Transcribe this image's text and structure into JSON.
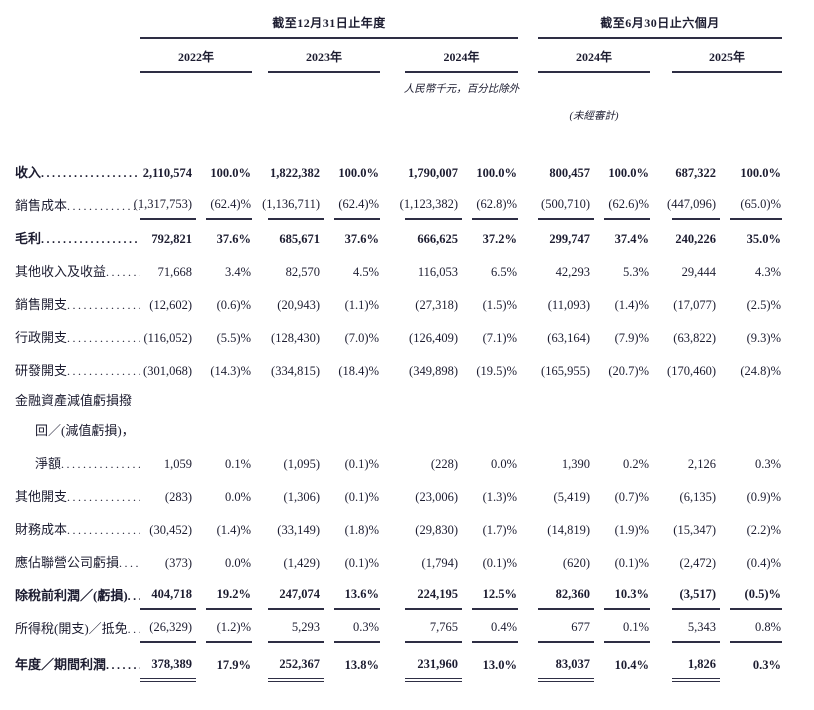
{
  "page": {
    "background": "#ffffff",
    "text_color": "#1c1c30",
    "line_color": "#2e2e44"
  },
  "table": {
    "header": {
      "annual_title": "截至12月31日止年度",
      "interim_title": "截至6月30日止六個月",
      "years": [
        "2022年",
        "2023年",
        "2024年",
        "2024年",
        "2025年"
      ],
      "unit_note": "人民幣千元，百分比除外",
      "unaudited_note": "(未經審計)"
    },
    "rows": [
      {
        "label": "收入",
        "bold": true,
        "dots": true,
        "cells": [
          "2,110,574",
          "100.0%",
          "1,822,382",
          "100.0%",
          "1,790,007",
          "100.0%",
          "800,457",
          "100.0%",
          "687,322",
          "100.0%"
        ]
      },
      {
        "label": "銷售成本",
        "dots": true,
        "underline": "single",
        "cells": [
          "(1,317,753)",
          "(62.4)%",
          "(1,136,711)",
          "(62.4)%",
          "(1,123,382)",
          "(62.8)%",
          "(500,710)",
          "(62.6)%",
          "(447,096)",
          "(65.0)%"
        ]
      },
      {
        "label": "毛利",
        "bold": true,
        "dots": true,
        "cells": [
          "792,821",
          "37.6%",
          "685,671",
          "37.6%",
          "666,625",
          "37.2%",
          "299,747",
          "37.4%",
          "240,226",
          "35.0%"
        ]
      },
      {
        "label": "其他收入及收益",
        "dots": true,
        "cells": [
          "71,668",
          "3.4%",
          "82,570",
          "4.5%",
          "116,053",
          "6.5%",
          "42,293",
          "5.3%",
          "29,444",
          "4.3%"
        ]
      },
      {
        "label": "銷售開支",
        "dots": true,
        "cells": [
          "(12,602)",
          "(0.6)%",
          "(20,943)",
          "(1.1)%",
          "(27,318)",
          "(1.5)%",
          "(11,093)",
          "(1.4)%",
          "(17,077)",
          "(2.5)%"
        ]
      },
      {
        "label": "行政開支",
        "dots": true,
        "cells": [
          "(116,052)",
          "(5.5)%",
          "(128,430)",
          "(7.0)%",
          "(126,409)",
          "(7.1)%",
          "(63,164)",
          "(7.9)%",
          "(63,822)",
          "(9.3)%"
        ]
      },
      {
        "label": "研發開支",
        "dots": true,
        "cells": [
          "(301,068)",
          "(14.3)%",
          "(334,815)",
          "(18.4)%",
          "(349,898)",
          "(19.5)%",
          "(165,955)",
          "(20.7)%",
          "(170,460)",
          "(24.8)%"
        ]
      },
      {
        "label": "金融資產減值虧損撥",
        "label_only": true
      },
      {
        "label": "回／(減值虧損)，",
        "label_only": true,
        "indent": true
      },
      {
        "label": "淨額",
        "indent": true,
        "dots": true,
        "cells": [
          "1,059",
          "0.1%",
          "(1,095)",
          "(0.1)%",
          "(228)",
          "0.0%",
          "1,390",
          "0.2%",
          "2,126",
          "0.3%"
        ]
      },
      {
        "label": "其他開支",
        "dots": true,
        "cells": [
          "(283)",
          "0.0%",
          "(1,306)",
          "(0.1)%",
          "(23,006)",
          "(1.3)%",
          "(5,419)",
          "(0.7)%",
          "(6,135)",
          "(0.9)%"
        ]
      },
      {
        "label": "財務成本",
        "dots": true,
        "cells": [
          "(30,452)",
          "(1.4)%",
          "(33,149)",
          "(1.8)%",
          "(29,830)",
          "(1.7)%",
          "(14,819)",
          "(1.9)%",
          "(15,347)",
          "(2.2)%"
        ]
      },
      {
        "label": "應佔聯營公司虧損",
        "dots": true,
        "cells": [
          "(373)",
          "0.0%",
          "(1,429)",
          "(0.1)%",
          "(1,794)",
          "(0.1)%",
          "(620)",
          "(0.1)%",
          "(2,472)",
          "(0.4)%"
        ]
      },
      {
        "label": "除稅前利潤／(虧損)",
        "bold": true,
        "dots": true,
        "underline": "single",
        "cells": [
          "404,718",
          "19.2%",
          "247,074",
          "13.6%",
          "224,195",
          "12.5%",
          "82,360",
          "10.3%",
          "(3,517)",
          "(0.5)%"
        ]
      },
      {
        "label": "所得稅(開支)／抵免",
        "dots": true,
        "underline": "single",
        "cells": [
          "(26,329)",
          "(1.2)%",
          "5,293",
          "0.3%",
          "7,765",
          "0.4%",
          "677",
          "0.1%",
          "5,343",
          "0.8%"
        ]
      },
      {
        "label": "年度／期間利潤",
        "bold": true,
        "dots": true,
        "underline": "double",
        "cells": [
          "378,389",
          "17.9%",
          "252,367",
          "13.8%",
          "231,960",
          "13.0%",
          "83,037",
          "10.4%",
          "1,826",
          "0.3%"
        ]
      }
    ]
  }
}
